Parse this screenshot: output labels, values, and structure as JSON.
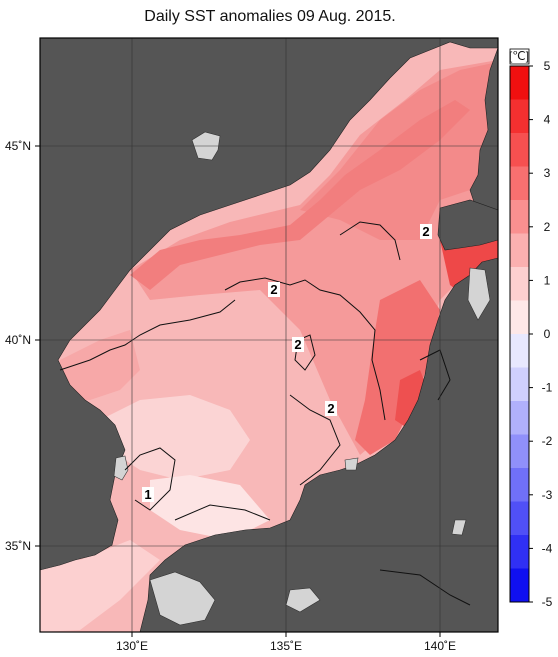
{
  "title": "Daily SST anomalies 09 Aug. 2015.",
  "map": {
    "lon_labels": [
      "130˚E",
      "135˚E",
      "140˚E"
    ],
    "lat_labels": [
      "45˚N",
      "40˚N",
      "35˚N"
    ],
    "contour_labels": [
      "2",
      "2",
      "2",
      "2",
      "1"
    ]
  },
  "colorbar": {
    "unit": "[℃]",
    "tick_labels": [
      "5",
      "4",
      "3",
      "2",
      "1",
      "0",
      "-1",
      "-2",
      "-3",
      "-4",
      "-5"
    ],
    "colors": [
      "#f01010",
      "#f43030",
      "#f65050",
      "#f87070",
      "#fa9090",
      "#fbb0b0",
      "#fdd0d0",
      "#fee8e8",
      "#e8e8fe",
      "#d0d0fd",
      "#b0b0fb",
      "#9090fa",
      "#7070f8",
      "#5050f6",
      "#3030f4",
      "#1010f0"
    ]
  },
  "colors": {
    "land": "#555555",
    "sea_base": "#f8b8b8",
    "grid": "#333333"
  }
}
